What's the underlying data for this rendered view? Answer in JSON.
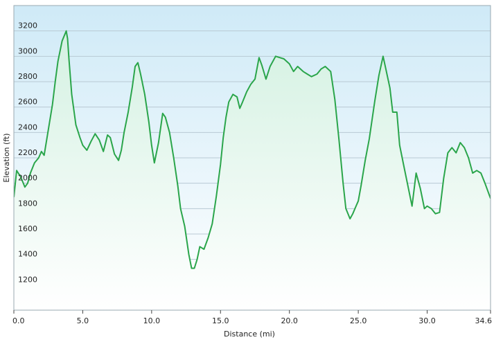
{
  "chart_data": {
    "type": "area",
    "title": "",
    "xlabel": "Distance  (mi)",
    "ylabel": "Elevation (ft)",
    "xlim": [
      0,
      34.6
    ],
    "ylim": [
      1000,
      3400
    ],
    "xticks": [
      0,
      5,
      10,
      15,
      20,
      25,
      30,
      34.6
    ],
    "xtick_labels": [
      "0.0",
      "5.0",
      "10.0",
      "15.0",
      "20.0",
      "25.0",
      "30.0",
      "34.6"
    ],
    "yticks": [
      1200,
      1400,
      1600,
      1800,
      2000,
      2200,
      2400,
      2600,
      2800,
      3000,
      3200
    ],
    "ytick_labels": [
      "1200",
      "1400",
      "1600",
      "1800",
      "2000",
      "2200",
      "2400",
      "2600",
      "2800",
      "3000",
      "3200"
    ],
    "grid": true,
    "colors": {
      "line": "#2aa54a",
      "fill_top": "#d4f1e2",
      "fill_bottom": "#ffffff",
      "bg_top": "#cfeaf7",
      "bg_bottom": "#ffffff",
      "grid": "#b8c9d4"
    },
    "series": [
      {
        "x": [
          0,
          0.2,
          0.5,
          0.8,
          1.0,
          1.2,
          1.5,
          1.8,
          2.0,
          2.2,
          2.5,
          2.8,
          3.0,
          3.2,
          3.5,
          3.8,
          3.9,
          4.0,
          4.2,
          4.5,
          4.8,
          5.0,
          5.3,
          5.6,
          5.9,
          6.2,
          6.5,
          6.8,
          7.0,
          7.3,
          7.6,
          7.8,
          8.0,
          8.3,
          8.6,
          8.8,
          9.0,
          9.2,
          9.5,
          9.8,
          10.0,
          10.2,
          10.5,
          10.8,
          11.0,
          11.3,
          11.6,
          11.9,
          12.1,
          12.4,
          12.7,
          12.9,
          13.1,
          13.3,
          13.5,
          13.8,
          14.1,
          14.4,
          14.7,
          15.0,
          15.2,
          15.4,
          15.6,
          15.9,
          16.2,
          16.4,
          16.6,
          16.9,
          17.2,
          17.5,
          17.8,
          18.0,
          18.3,
          18.6,
          19.0,
          19.3,
          19.6,
          20.0,
          20.3,
          20.6,
          21.0,
          21.3,
          21.6,
          22.0,
          22.3,
          22.6,
          23.0,
          23.3,
          23.6,
          23.9,
          24.1,
          24.4,
          24.6,
          24.8,
          25.0,
          25.2,
          25.5,
          25.8,
          26.0,
          26.2,
          26.5,
          26.8,
          27.0,
          27.3,
          27.5,
          27.8,
          28.0,
          28.3,
          28.6,
          28.9,
          29.2,
          29.5,
          29.8,
          30.0,
          30.3,
          30.6,
          30.9,
          31.2,
          31.5,
          31.8,
          32.1,
          32.4,
          32.7,
          33.0,
          33.3,
          33.6,
          33.9,
          34.2,
          34.6
        ],
        "y": [
          1890,
          2100,
          2050,
          1970,
          2000,
          2080,
          2160,
          2200,
          2250,
          2220,
          2420,
          2620,
          2800,
          2960,
          3120,
          3200,
          3140,
          2980,
          2700,
          2460,
          2360,
          2300,
          2260,
          2330,
          2390,
          2340,
          2250,
          2380,
          2360,
          2230,
          2180,
          2260,
          2400,
          2560,
          2760,
          2920,
          2950,
          2860,
          2700,
          2480,
          2300,
          2160,
          2320,
          2550,
          2520,
          2400,
          2200,
          1980,
          1800,
          1660,
          1440,
          1330,
          1330,
          1400,
          1500,
          1480,
          1570,
          1680,
          1900,
          2150,
          2360,
          2520,
          2640,
          2700,
          2680,
          2590,
          2640,
          2720,
          2780,
          2820,
          2990,
          2930,
          2820,
          2920,
          3000,
          2990,
          2980,
          2940,
          2880,
          2920,
          2880,
          2860,
          2840,
          2860,
          2900,
          2920,
          2880,
          2660,
          2340,
          2000,
          1800,
          1720,
          1760,
          1810,
          1860,
          1980,
          2180,
          2350,
          2500,
          2650,
          2850,
          3000,
          2900,
          2750,
          2560,
          2560,
          2300,
          2140,
          1980,
          1820,
          2080,
          1960,
          1800,
          1820,
          1800,
          1760,
          1770,
          2040,
          2240,
          2280,
          2240,
          2320,
          2280,
          2200,
          2080,
          2100,
          2080,
          2000,
          1880
        ]
      }
    ]
  }
}
